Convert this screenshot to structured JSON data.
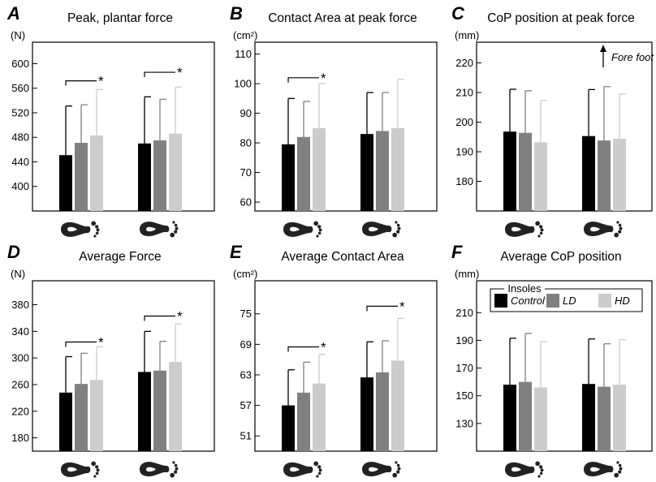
{
  "chart_data": [
    {
      "type": "bar",
      "panel": "A",
      "title": "Peak, plantar force",
      "ylabel": "(N)",
      "ylim": [
        360,
        635
      ],
      "yticks": [
        400,
        440,
        480,
        520,
        560,
        600
      ],
      "categories": [
        "left foot",
        "right foot"
      ],
      "series": [
        {
          "name": "Control",
          "color": "#000000",
          "values": [
            451,
            470
          ],
          "errors": [
            80,
            76
          ]
        },
        {
          "name": "LD",
          "color": "#808080",
          "values": [
            471,
            475
          ],
          "errors": [
            62,
            67
          ]
        },
        {
          "name": "HD",
          "color": "#cccccc",
          "values": [
            483,
            486
          ],
          "errors": [
            75,
            76
          ]
        }
      ],
      "significance": [
        {
          "category": 0,
          "from": 0,
          "to": 2,
          "y": 572,
          "label": "*"
        },
        {
          "category": 1,
          "from": 0,
          "to": 2,
          "y": 586,
          "label": "*"
        }
      ]
    },
    {
      "type": "bar",
      "panel": "B",
      "title": "Contact Area at peak force",
      "ylabel": "(cm²)",
      "ylim": [
        57,
        114
      ],
      "yticks": [
        60,
        70,
        80,
        90,
        100,
        110
      ],
      "categories": [
        "left foot",
        "right foot"
      ],
      "series": [
        {
          "name": "Control",
          "color": "#000000",
          "values": [
            79.5,
            83
          ],
          "errors": [
            15.5,
            14
          ]
        },
        {
          "name": "LD",
          "color": "#808080",
          "values": [
            82,
            84
          ],
          "errors": [
            12,
            13
          ]
        },
        {
          "name": "HD",
          "color": "#cccccc",
          "values": [
            85,
            85
          ],
          "errors": [
            15,
            16.5
          ]
        }
      ],
      "significance": [
        {
          "category": 0,
          "from": 0,
          "to": 2,
          "y": 102,
          "label": "*"
        }
      ]
    },
    {
      "type": "bar",
      "panel": "C",
      "title": "CoP position at peak force",
      "ylabel": "(mm)",
      "ylim": [
        170,
        227
      ],
      "yticks": [
        180,
        190,
        200,
        210,
        220
      ],
      "categories": [
        "left foot",
        "right foot"
      ],
      "annotation": "Fore foot",
      "series": [
        {
          "name": "Control",
          "color": "#000000",
          "values": [
            196.8,
            195.3
          ],
          "errors": [
            14.3,
            15.7
          ]
        },
        {
          "name": "LD",
          "color": "#808080",
          "values": [
            196.4,
            193.8
          ],
          "errors": [
            14.2,
            18.2
          ]
        },
        {
          "name": "HD",
          "color": "#cccccc",
          "values": [
            193.2,
            194.4
          ],
          "errors": [
            14.1,
            15.1
          ]
        }
      ],
      "significance": []
    },
    {
      "type": "bar",
      "panel": "D",
      "title": "Average Force",
      "ylabel": "(N)",
      "ylim": [
        160,
        416
      ],
      "yticks": [
        180,
        220,
        260,
        300,
        340,
        380
      ],
      "categories": [
        "left foot",
        "right foot"
      ],
      "series": [
        {
          "name": "Control",
          "color": "#000000",
          "values": [
            248,
            279
          ],
          "errors": [
            54,
            61
          ]
        },
        {
          "name": "LD",
          "color": "#808080",
          "values": [
            261,
            281
          ],
          "errors": [
            46,
            44
          ]
        },
        {
          "name": "HD",
          "color": "#cccccc",
          "values": [
            267,
            294
          ],
          "errors": [
            50,
            57
          ]
        }
      ],
      "significance": [
        {
          "category": 0,
          "from": 0,
          "to": 2,
          "y": 324,
          "label": "*"
        },
        {
          "category": 1,
          "from": 0,
          "to": 2,
          "y": 363,
          "label": "*"
        }
      ]
    },
    {
      "type": "bar",
      "panel": "E",
      "title": "Average Contact Area",
      "ylabel": "(cm²)",
      "ylim": [
        48,
        81.5
      ],
      "yticks": [
        51,
        57,
        63,
        69,
        75
      ],
      "categories": [
        "left foot",
        "right foot"
      ],
      "series": [
        {
          "name": "Control",
          "color": "#000000",
          "values": [
            57,
            62.5
          ],
          "errors": [
            7,
            7
          ]
        },
        {
          "name": "LD",
          "color": "#808080",
          "values": [
            59.5,
            63.5
          ],
          "errors": [
            6,
            6.2
          ]
        },
        {
          "name": "HD",
          "color": "#cccccc",
          "values": [
            61.3,
            65.8
          ],
          "errors": [
            5.7,
            8.3
          ]
        }
      ],
      "significance": [
        {
          "category": 0,
          "from": 0,
          "to": 2,
          "y": 68.5,
          "label": "*"
        },
        {
          "category": 1,
          "from": 0,
          "to": 2,
          "y": 76.5,
          "label": "*"
        }
      ]
    },
    {
      "type": "bar",
      "panel": "F",
      "title": "Average CoP position",
      "ylabel": "(mm)",
      "ylim": [
        110,
        233
      ],
      "yticks": [
        130,
        150,
        170,
        190,
        210
      ],
      "categories": [
        "left foot",
        "right foot"
      ],
      "legend": {
        "title": "Insoles",
        "position": "top",
        "items": [
          "Control",
          "LD",
          "HD"
        ]
      },
      "series": [
        {
          "name": "Control",
          "color": "#000000",
          "values": [
            158,
            158.5
          ],
          "errors": [
            33.5,
            32.5
          ]
        },
        {
          "name": "LD",
          "color": "#808080",
          "values": [
            160,
            156.5
          ],
          "errors": [
            35,
            31
          ]
        },
        {
          "name": "HD",
          "color": "#cccccc",
          "values": [
            156,
            158
          ],
          "errors": [
            33,
            32.5
          ]
        }
      ],
      "significance": []
    }
  ]
}
